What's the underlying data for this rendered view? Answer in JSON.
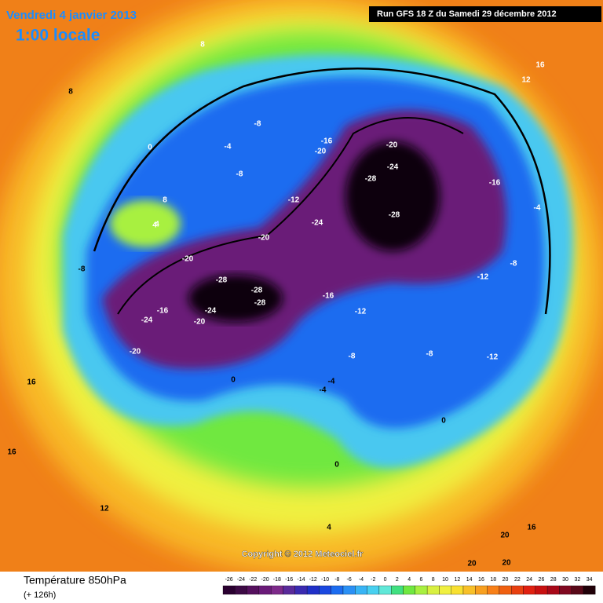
{
  "header": {
    "date": "Vendredi 4 janvier 2013",
    "time": "1:00 locale",
    "run": "Run GFS 18 Z du Samedi 29 décembre 2012"
  },
  "copyright": "Copyright © 2012 Meteociel.fr",
  "footer": {
    "title": "Température 850hPa",
    "lead": "(+ 126h)"
  },
  "legend": {
    "ticks": [
      -26,
      -24,
      -22,
      -20,
      -18,
      -16,
      -14,
      -12,
      -10,
      -8,
      -6,
      -4,
      -2,
      0,
      2,
      4,
      6,
      8,
      10,
      12,
      14,
      16,
      18,
      20,
      22,
      24,
      26,
      28,
      30,
      32,
      34
    ],
    "colors": [
      "#2a0030",
      "#3d0a45",
      "#55105e",
      "#6a1a78",
      "#7d2a8a",
      "#5a2a9a",
      "#3a2ab0",
      "#2030c8",
      "#1a48e0",
      "#1c6cf0",
      "#2a90f5",
      "#38b4f5",
      "#48d0f0",
      "#60e8d8",
      "#40e080",
      "#70e840",
      "#a8f040",
      "#d8f040",
      "#f0f040",
      "#f8e030",
      "#f8c028",
      "#f8a020",
      "#f88018",
      "#f06010",
      "#e84010",
      "#e02010",
      "#c81010",
      "#a80818",
      "#800820",
      "#580818",
      "#200008"
    ]
  },
  "contour_labels": [
    "-28",
    "-28",
    "-28",
    "-24",
    "-20",
    "-20",
    "-16",
    "-28",
    "-28",
    "-24",
    "-24",
    "-20",
    "-20",
    "-20",
    "-24",
    "-16",
    "-12",
    "-8",
    "-8",
    "-8",
    "-4",
    "0",
    "0",
    "4",
    "8",
    "-4",
    "-8",
    "-12",
    "-12",
    "-16",
    "-20",
    "-16",
    "-12",
    "-8",
    "-4",
    "0",
    "4",
    "8",
    "12",
    "16",
    "16",
    "16",
    "12",
    "8",
    "20",
    "20",
    "20",
    "16",
    "-8",
    "-4",
    "0",
    "4"
  ]
}
